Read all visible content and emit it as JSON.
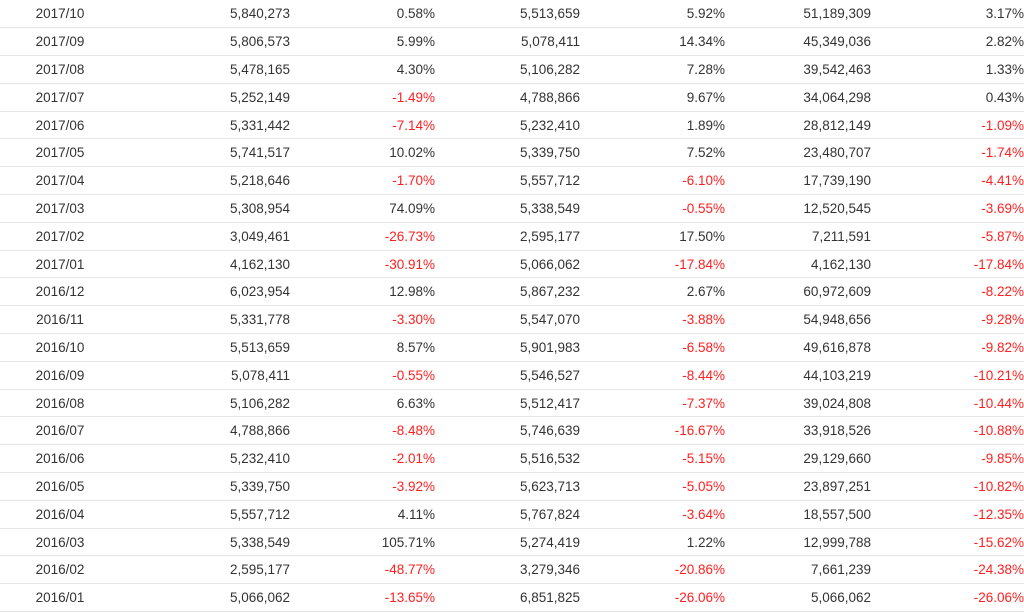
{
  "colors": {
    "text": "#333333",
    "negative": "#ff1f1f",
    "divider": "#e6e6e6"
  },
  "table": {
    "rows": [
      {
        "period": "2017/10",
        "v1": "5,840,273",
        "p1": "0.58%",
        "v2": "5,513,659",
        "p2": "5.92%",
        "v3": "51,189,309",
        "p3": "3.17%"
      },
      {
        "period": "2017/09",
        "v1": "5,806,573",
        "p1": "5.99%",
        "v2": "5,078,411",
        "p2": "14.34%",
        "v3": "45,349,036",
        "p3": "2.82%"
      },
      {
        "period": "2017/08",
        "v1": "5,478,165",
        "p1": "4.30%",
        "v2": "5,106,282",
        "p2": "7.28%",
        "v3": "39,542,463",
        "p3": "1.33%"
      },
      {
        "period": "2017/07",
        "v1": "5,252,149",
        "p1": "-1.49%",
        "v2": "4,788,866",
        "p2": "9.67%",
        "v3": "34,064,298",
        "p3": "0.43%"
      },
      {
        "period": "2017/06",
        "v1": "5,331,442",
        "p1": "-7.14%",
        "v2": "5,232,410",
        "p2": "1.89%",
        "v3": "28,812,149",
        "p3": "-1.09%"
      },
      {
        "period": "2017/05",
        "v1": "5,741,517",
        "p1": "10.02%",
        "v2": "5,339,750",
        "p2": "7.52%",
        "v3": "23,480,707",
        "p3": "-1.74%"
      },
      {
        "period": "2017/04",
        "v1": "5,218,646",
        "p1": "-1.70%",
        "v2": "5,557,712",
        "p2": "-6.10%",
        "v3": "17,739,190",
        "p3": "-4.41%"
      },
      {
        "period": "2017/03",
        "v1": "5,308,954",
        "p1": "74.09%",
        "v2": "5,338,549",
        "p2": "-0.55%",
        "v3": "12,520,545",
        "p3": "-3.69%"
      },
      {
        "period": "2017/02",
        "v1": "3,049,461",
        "p1": "-26.73%",
        "v2": "2,595,177",
        "p2": "17.50%",
        "v3": "7,211,591",
        "p3": "-5.87%"
      },
      {
        "period": "2017/01",
        "v1": "4,162,130",
        "p1": "-30.91%",
        "v2": "5,066,062",
        "p2": "-17.84%",
        "v3": "4,162,130",
        "p3": "-17.84%"
      },
      {
        "period": "2016/12",
        "v1": "6,023,954",
        "p1": "12.98%",
        "v2": "5,867,232",
        "p2": "2.67%",
        "v3": "60,972,609",
        "p3": "-8.22%"
      },
      {
        "period": "2016/11",
        "v1": "5,331,778",
        "p1": "-3.30%",
        "v2": "5,547,070",
        "p2": "-3.88%",
        "v3": "54,948,656",
        "p3": "-9.28%"
      },
      {
        "period": "2016/10",
        "v1": "5,513,659",
        "p1": "8.57%",
        "v2": "5,901,983",
        "p2": "-6.58%",
        "v3": "49,616,878",
        "p3": "-9.82%"
      },
      {
        "period": "2016/09",
        "v1": "5,078,411",
        "p1": "-0.55%",
        "v2": "5,546,527",
        "p2": "-8.44%",
        "v3": "44,103,219",
        "p3": "-10.21%"
      },
      {
        "period": "2016/08",
        "v1": "5,106,282",
        "p1": "6.63%",
        "v2": "5,512,417",
        "p2": "-7.37%",
        "v3": "39,024,808",
        "p3": "-10.44%"
      },
      {
        "period": "2016/07",
        "v1": "4,788,866",
        "p1": "-8.48%",
        "v2": "5,746,639",
        "p2": "-16.67%",
        "v3": "33,918,526",
        "p3": "-10.88%"
      },
      {
        "period": "2016/06",
        "v1": "5,232,410",
        "p1": "-2.01%",
        "v2": "5,516,532",
        "p2": "-5.15%",
        "v3": "29,129,660",
        "p3": "-9.85%"
      },
      {
        "period": "2016/05",
        "v1": "5,339,750",
        "p1": "-3.92%",
        "v2": "5,623,713",
        "p2": "-5.05%",
        "v3": "23,897,251",
        "p3": "-10.82%"
      },
      {
        "period": "2016/04",
        "v1": "5,557,712",
        "p1": "4.11%",
        "v2": "5,767,824",
        "p2": "-3.64%",
        "v3": "18,557,500",
        "p3": "-12.35%"
      },
      {
        "period": "2016/03",
        "v1": "5,338,549",
        "p1": "105.71%",
        "v2": "5,274,419",
        "p2": "1.22%",
        "v3": "12,999,788",
        "p3": "-15.62%"
      },
      {
        "period": "2016/02",
        "v1": "2,595,177",
        "p1": "-48.77%",
        "v2": "3,279,346",
        "p2": "-20.86%",
        "v3": "7,661,239",
        "p3": "-24.38%"
      },
      {
        "period": "2016/01",
        "v1": "5,066,062",
        "p1": "-13.65%",
        "v2": "6,851,825",
        "p2": "-26.06%",
        "v3": "5,066,062",
        "p3": "-26.06%"
      }
    ]
  }
}
